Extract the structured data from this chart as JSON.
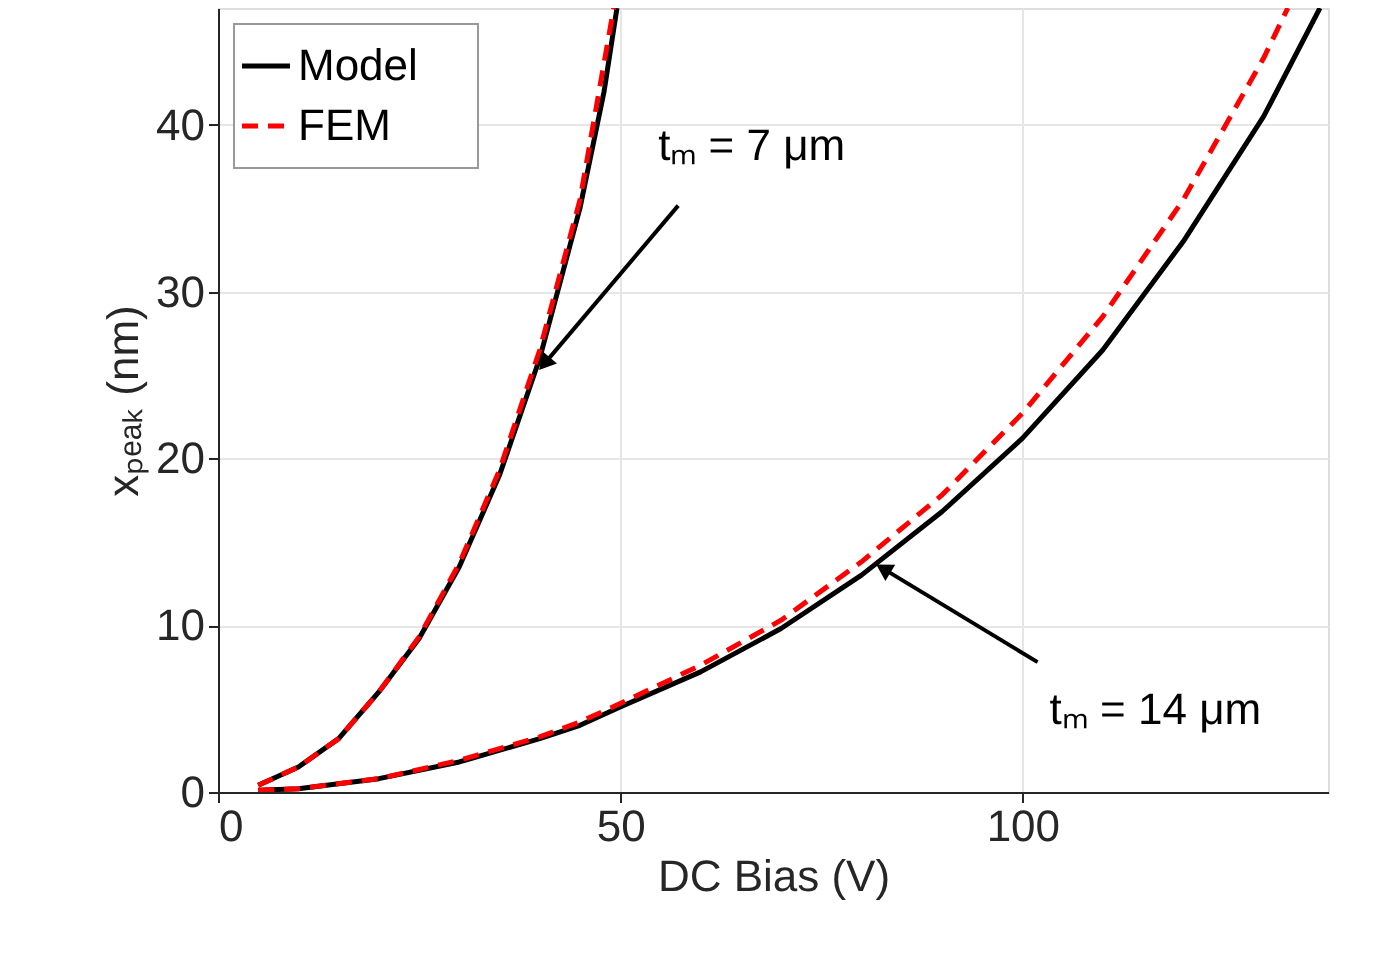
{
  "chart_data": {
    "type": "line",
    "xlabel": "DC Bias (V)",
    "ylabel": "xₚₑₐₖ (nm)",
    "xlim": [
      0,
      138
    ],
    "ylim": [
      0,
      47
    ],
    "xticks": [
      0,
      50,
      100
    ],
    "yticks": [
      0,
      10,
      20,
      30,
      40
    ],
    "grid": true,
    "legend": "top left",
    "series": [
      {
        "name": "Model",
        "color": "#000000",
        "line_style": "solid",
        "x": [
          5,
          10,
          15,
          20,
          25,
          30,
          35,
          40,
          45,
          48,
          49.6
        ],
        "values": [
          0.4,
          1.5,
          3.2,
          6,
          9.2,
          13.5,
          19,
          26,
          35,
          42,
          47
        ]
      },
      {
        "name": "FEM",
        "color": "#ff0000",
        "line_style": "dashed",
        "x": [
          5,
          10,
          15,
          20,
          25,
          30,
          35,
          40,
          45,
          49.2
        ],
        "values": [
          0.4,
          1.5,
          3.2,
          6,
          9.3,
          13.7,
          19.3,
          26.5,
          35.5,
          47
        ]
      },
      {
        "color": "#000000",
        "line_style": "solid",
        "x": [
          5,
          10,
          20,
          30,
          40,
          45,
          50,
          60,
          70,
          80,
          90,
          100,
          110,
          120,
          130,
          137
        ],
        "values": [
          0.1,
          0.2,
          0.8,
          1.8,
          3.2,
          4,
          5.1,
          7.2,
          9.8,
          13,
          16.8,
          21.2,
          26.5,
          33,
          40.5,
          47
        ]
      },
      {
        "color": "#ff0000",
        "line_style": "dashed",
        "x": [
          5,
          10,
          20,
          30,
          40,
          45,
          50,
          60,
          70,
          80,
          90,
          100,
          110,
          120,
          130,
          133
        ],
        "values": [
          0.1,
          0.2,
          0.8,
          1.9,
          3.3,
          4.2,
          5.3,
          7.6,
          10.3,
          13.8,
          17.8,
          22.7,
          28.5,
          35.5,
          44,
          47
        ]
      }
    ],
    "annotations": [
      {
        "text": "tₘ = 7 μm",
        "x": 40.8,
        "y": 25.8
      },
      {
        "text": "tₘ = 14 μm",
        "x": 83,
        "y": 13.3
      }
    ]
  }
}
